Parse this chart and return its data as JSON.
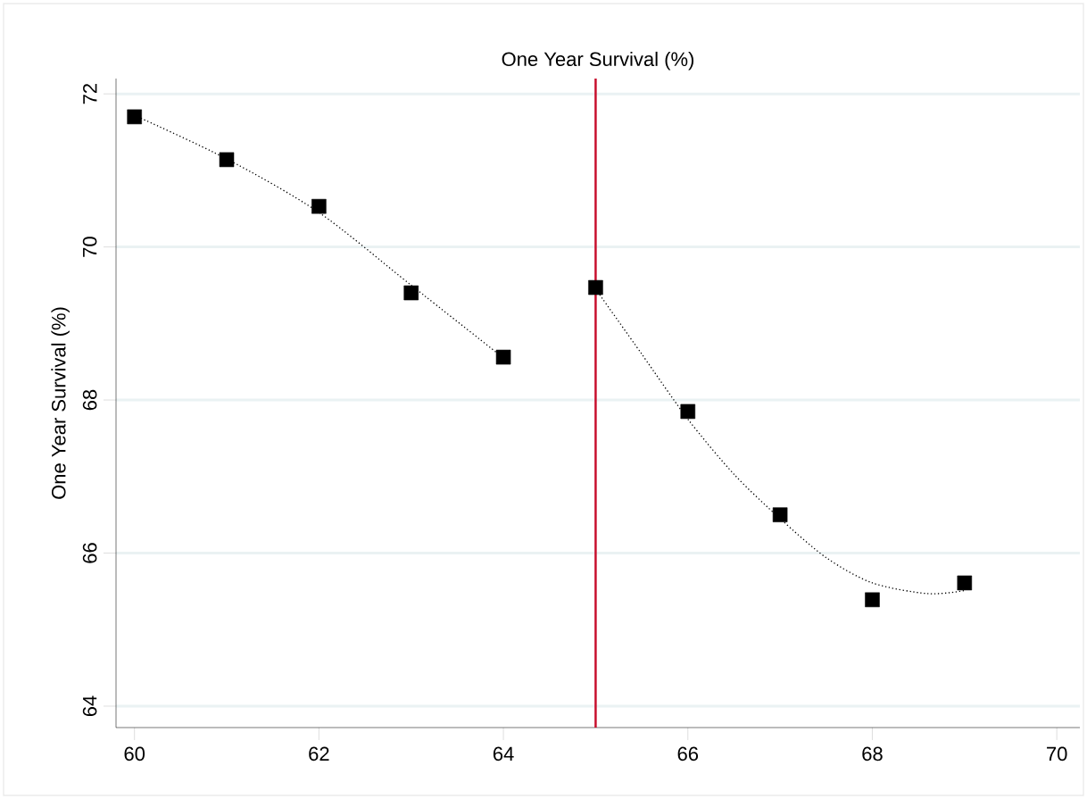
{
  "chart_data": {
    "type": "scatter",
    "title": "One Year Survival (%)",
    "ylabel": "One Year Survival (%)",
    "xlim": [
      59.8,
      70.25
    ],
    "ylim": [
      63.72,
      72.2
    ],
    "xticks": [
      60,
      62,
      64,
      66,
      68,
      70
    ],
    "yticks": [
      64,
      66,
      68,
      70,
      72
    ],
    "grid": "y",
    "series": [
      {
        "color": "#000000",
        "marker": "square",
        "x": [
          60,
          61,
          62,
          63,
          64,
          65,
          66,
          67,
          68,
          69
        ],
        "values": [
          71.7,
          71.14,
          70.53,
          69.4,
          68.56,
          69.47,
          67.85,
          66.5,
          65.39,
          65.61
        ]
      },
      {
        "type": "line",
        "color": "#000000",
        "line_style": "dotted",
        "marker": "none",
        "x": [
          60,
          61,
          62,
          63,
          64
        ],
        "values": [
          71.72,
          71.15,
          70.45,
          69.5,
          68.55
        ]
      },
      {
        "type": "line",
        "color": "#000000",
        "line_style": "dotted",
        "marker": "none",
        "x": [
          65,
          65.5,
          66,
          66.5,
          67,
          67.5,
          68,
          68.6,
          69
        ],
        "values": [
          69.45,
          68.6,
          67.75,
          67.03,
          66.45,
          65.94,
          65.61,
          65.47,
          65.51
        ]
      }
    ],
    "ref_lines": [
      {
        "axis": "x",
        "value": 65,
        "color": "#c8102e"
      }
    ]
  }
}
